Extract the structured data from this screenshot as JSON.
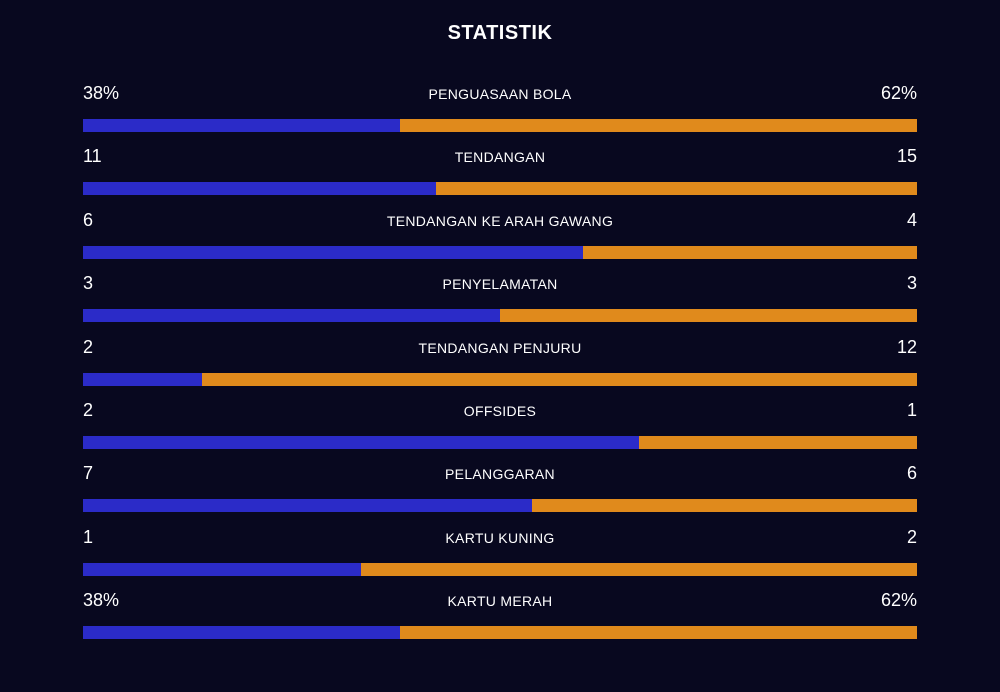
{
  "title": "STATISTIK",
  "colors": {
    "background": "#08081f",
    "home": "#2b2bc8",
    "away": "#e08a1c",
    "text": "#ffffff"
  },
  "stats": [
    {
      "label": "PENGUASAAN BOLA",
      "home": "38%",
      "away": "62%",
      "home_share": 0.38
    },
    {
      "label": "TENDANGAN",
      "home": "11",
      "away": "15",
      "home_share": 0.4231
    },
    {
      "label": "TENDANGAN KE ARAH GAWANG",
      "home": "6",
      "away": "4",
      "home_share": 0.6
    },
    {
      "label": "PENYELAMATAN",
      "home": "3",
      "away": "3",
      "home_share": 0.5
    },
    {
      "label": "TENDANGAN PENJURU",
      "home": "2",
      "away": "12",
      "home_share": 0.1429
    },
    {
      "label": "OFFSIDES",
      "home": "2",
      "away": "1",
      "home_share": 0.6667
    },
    {
      "label": "PELANGGARAN",
      "home": "7",
      "away": "6",
      "home_share": 0.5385
    },
    {
      "label": "KARTU KUNING",
      "home": "1",
      "away": "2",
      "home_share": 0.3333
    },
    {
      "label": "KARTU MERAH",
      "home": "38%",
      "away": "62%",
      "home_share": 0.38
    }
  ]
}
